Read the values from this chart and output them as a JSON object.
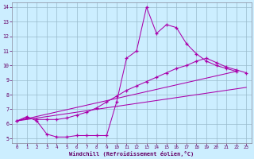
{
  "xlabel": "Windchill (Refroidissement éolien,°C)",
  "xlim": [
    -0.5,
    23.5
  ],
  "ylim": [
    4.7,
    14.3
  ],
  "yticks": [
    5,
    6,
    7,
    8,
    9,
    10,
    11,
    12,
    13,
    14
  ],
  "xticks": [
    0,
    1,
    2,
    3,
    4,
    5,
    6,
    7,
    8,
    9,
    10,
    11,
    12,
    13,
    14,
    15,
    16,
    17,
    18,
    19,
    20,
    21,
    22,
    23
  ],
  "bg_color": "#cceeff",
  "line_color": "#aa00aa",
  "grid_color": "#99bbcc",
  "line1_x": [
    0,
    1,
    2,
    3,
    4,
    5,
    6,
    7,
    8,
    9,
    10,
    11,
    12,
    13,
    14,
    15,
    16,
    17,
    18,
    19,
    20,
    21,
    22
  ],
  "line1_y": [
    6.2,
    6.5,
    6.2,
    5.3,
    5.1,
    5.1,
    5.2,
    5.2,
    5.2,
    5.2,
    7.5,
    10.5,
    11.0,
    14.0,
    12.2,
    12.8,
    12.6,
    11.5,
    10.8,
    10.3,
    10.0,
    9.8,
    9.6
  ],
  "line2_x": [
    0,
    1,
    2,
    3,
    4,
    5,
    6,
    7,
    8,
    9,
    10,
    11,
    12,
    13,
    14,
    15,
    16,
    17,
    18,
    19,
    20,
    21,
    22,
    23
  ],
  "line2_y": [
    6.2,
    6.4,
    6.3,
    6.3,
    6.3,
    6.4,
    6.6,
    6.8,
    7.1,
    7.5,
    7.9,
    8.3,
    8.6,
    8.9,
    9.2,
    9.5,
    9.8,
    10.0,
    10.3,
    10.5,
    10.2,
    9.9,
    9.7,
    9.5
  ],
  "line3_x": [
    0,
    22
  ],
  "line3_y": [
    6.2,
    9.6
  ],
  "line4_x": [
    0,
    23
  ],
  "line4_y": [
    6.2,
    8.5
  ]
}
